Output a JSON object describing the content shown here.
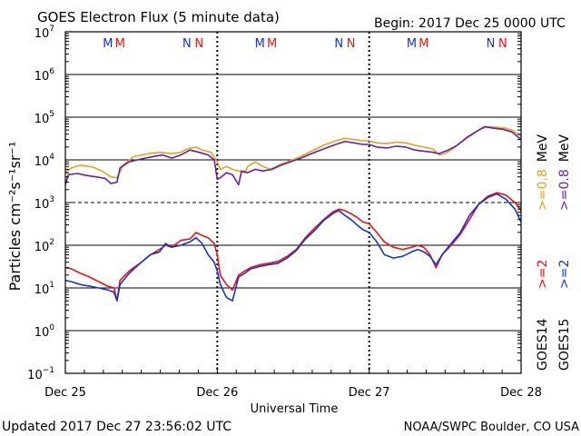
{
  "header": {
    "title": "GOES Electron Flux (5 minute data)",
    "begin": "Begin: 2017 Dec 25 0000 UTC"
  },
  "footer": {
    "updated": "Updated 2017 Dec 27 23:56:02 UTC",
    "credit": "NOAA/SWPC Boulder, CO USA"
  },
  "colors": {
    "goes14_e2": "#ee1111",
    "goes14_e08": "#e8a020",
    "goes15_e2": "#1133dd",
    "goes15_e08": "#6a1fa0",
    "marker_m": "#1133dd",
    "marker_n": "#ee1111"
  },
  "chart_data": {
    "type": "line",
    "title": "GOES Electron Flux (5 minute data)",
    "xlabel": "Universal Time",
    "ylabel": "Particles cm⁻²s⁻¹sr⁻¹",
    "x_ticks": [
      "Dec 25",
      "Dec 26",
      "Dec 27",
      "Dec 28"
    ],
    "xlim_days": [
      0,
      3
    ],
    "yscale": "log",
    "ylim": [
      0.1,
      10000000
    ],
    "y_tick_labels": [
      {
        "base": "10",
        "exp": "7"
      },
      {
        "base": "10",
        "exp": "6"
      },
      {
        "base": "10",
        "exp": "5"
      },
      {
        "base": "10",
        "exp": "4"
      },
      {
        "base": "10",
        "exp": "3"
      },
      {
        "base": "10",
        "exp": "2"
      },
      {
        "base": "10",
        "exp": "1"
      },
      {
        "base": "10",
        "exp": "0"
      },
      {
        "base": "10",
        "exp": "−1"
      }
    ],
    "alert_threshold": 1000,
    "grid": true,
    "legend": {
      "instruments": [
        "GOES14",
        "GOES15"
      ],
      "entries": [
        {
          "instrument": "GOES14",
          "label": ">=2",
          "unit": "",
          "color": "#ee1111"
        },
        {
          "instrument": "GOES14",
          "label": ">=0.8",
          "unit": "MeV",
          "color": "#e8a020"
        },
        {
          "instrument": "GOES15",
          "label": ">=2",
          "unit": "",
          "color": "#1133dd"
        },
        {
          "instrument": "GOES15",
          "label": ">=0.8",
          "unit": "MeV",
          "color": "#6a1fa0"
        }
      ]
    },
    "markers": [
      {
        "day": 0.28,
        "label": "M",
        "color": "#1133dd"
      },
      {
        "day": 0.36,
        "label": "M",
        "color": "#ee1111"
      },
      {
        "day": 0.8,
        "label": "N",
        "color": "#1133dd"
      },
      {
        "day": 0.88,
        "label": "N",
        "color": "#ee1111"
      },
      {
        "day": 1.28,
        "label": "M",
        "color": "#1133dd"
      },
      {
        "day": 1.36,
        "label": "M",
        "color": "#ee1111"
      },
      {
        "day": 1.8,
        "label": "N",
        "color": "#1133dd"
      },
      {
        "day": 1.88,
        "label": "N",
        "color": "#ee1111"
      },
      {
        "day": 2.28,
        "label": "M",
        "color": "#1133dd"
      },
      {
        "day": 2.36,
        "label": "M",
        "color": "#ee1111"
      },
      {
        "day": 2.8,
        "label": "N",
        "color": "#1133dd"
      },
      {
        "day": 2.88,
        "label": "N",
        "color": "#ee1111"
      }
    ],
    "day_boundaries": [
      1,
      2
    ],
    "series": [
      {
        "name": "GOES14 >=0.8 MeV",
        "color": "#e8a020",
        "points": [
          [
            0,
            5000
          ],
          [
            0.04,
            6500
          ],
          [
            0.1,
            7500
          ],
          [
            0.18,
            6800
          ],
          [
            0.24,
            5500
          ],
          [
            0.3,
            4000
          ],
          [
            0.34,
            3800
          ],
          [
            0.38,
            7500
          ],
          [
            0.45,
            12000
          ],
          [
            0.55,
            14000
          ],
          [
            0.62,
            15000
          ],
          [
            0.7,
            14000
          ],
          [
            0.76,
            15000
          ],
          [
            0.8,
            18000
          ],
          [
            0.86,
            20000
          ],
          [
            0.9,
            17000
          ],
          [
            0.96,
            15000
          ],
          [
            1.0,
            9000
          ],
          [
            1.02,
            6000
          ],
          [
            1.06,
            7000
          ],
          [
            1.1,
            6000
          ],
          [
            1.14,
            5500
          ],
          [
            1.18,
            5000
          ],
          [
            1.2,
            7000
          ],
          [
            1.25,
            9000
          ],
          [
            1.3,
            7000
          ],
          [
            1.35,
            6000
          ],
          [
            1.42,
            8000
          ],
          [
            1.48,
            9500
          ],
          [
            1.55,
            12000
          ],
          [
            1.62,
            16000
          ],
          [
            1.7,
            22000
          ],
          [
            1.78,
            28000
          ],
          [
            1.84,
            32000
          ],
          [
            1.9,
            30000
          ],
          [
            1.96,
            28000
          ],
          [
            2.0,
            28000
          ],
          [
            2.05,
            25000
          ],
          [
            2.12,
            24000
          ],
          [
            2.18,
            26000
          ],
          [
            2.24,
            25000
          ],
          [
            2.3,
            22000
          ],
          [
            2.36,
            20000
          ],
          [
            2.42,
            18000
          ],
          [
            2.46,
            13000
          ],
          [
            2.5,
            14000
          ],
          [
            2.55,
            18000
          ],
          [
            2.6,
            25000
          ],
          [
            2.66,
            35000
          ],
          [
            2.72,
            50000
          ],
          [
            2.78,
            60000
          ],
          [
            2.84,
            58000
          ],
          [
            2.9,
            55000
          ],
          [
            2.95,
            48000
          ],
          [
            3.0,
            35000
          ]
        ]
      },
      {
        "name": "GOES15 >=0.8 MeV",
        "color": "#6a1fa0",
        "points": [
          [
            0,
            2600
          ],
          [
            0.02,
            4500
          ],
          [
            0.08,
            4800
          ],
          [
            0.14,
            4300
          ],
          [
            0.2,
            4000
          ],
          [
            0.26,
            3700
          ],
          [
            0.3,
            2800
          ],
          [
            0.34,
            3000
          ],
          [
            0.36,
            6500
          ],
          [
            0.42,
            9000
          ],
          [
            0.5,
            10500
          ],
          [
            0.58,
            12000
          ],
          [
            0.64,
            13000
          ],
          [
            0.7,
            11000
          ],
          [
            0.76,
            13000
          ],
          [
            0.82,
            17000
          ],
          [
            0.88,
            15000
          ],
          [
            0.94,
            13000
          ],
          [
            0.98,
            10000
          ],
          [
            1.0,
            3500
          ],
          [
            1.02,
            3800
          ],
          [
            1.06,
            5000
          ],
          [
            1.1,
            4500
          ],
          [
            1.14,
            2600
          ],
          [
            1.16,
            5500
          ],
          [
            1.2,
            5000
          ],
          [
            1.25,
            6000
          ],
          [
            1.3,
            5500
          ],
          [
            1.36,
            6000
          ],
          [
            1.42,
            7500
          ],
          [
            1.48,
            9000
          ],
          [
            1.55,
            11000
          ],
          [
            1.62,
            14000
          ],
          [
            1.7,
            18000
          ],
          [
            1.78,
            23000
          ],
          [
            1.84,
            27000
          ],
          [
            1.9,
            25000
          ],
          [
            1.96,
            23000
          ],
          [
            2.0,
            23000
          ],
          [
            2.05,
            20000
          ],
          [
            2.12,
            19000
          ],
          [
            2.18,
            21000
          ],
          [
            2.24,
            20000
          ],
          [
            2.3,
            17000
          ],
          [
            2.36,
            16000
          ],
          [
            2.42,
            15000
          ],
          [
            2.46,
            14000
          ],
          [
            2.52,
            17000
          ],
          [
            2.58,
            22000
          ],
          [
            2.64,
            33000
          ],
          [
            2.7,
            45000
          ],
          [
            2.76,
            60000
          ],
          [
            2.82,
            55000
          ],
          [
            2.88,
            52000
          ],
          [
            2.94,
            45000
          ],
          [
            3.0,
            30000
          ]
        ]
      },
      {
        "name": "GOES14 >=2 MeV",
        "color": "#ee1111",
        "points": [
          [
            0,
            30
          ],
          [
            0.04,
            28
          ],
          [
            0.1,
            22
          ],
          [
            0.16,
            18
          ],
          [
            0.22,
            14
          ],
          [
            0.28,
            11
          ],
          [
            0.32,
            10
          ],
          [
            0.34,
            5
          ],
          [
            0.36,
            15
          ],
          [
            0.42,
            25
          ],
          [
            0.5,
            40
          ],
          [
            0.56,
            60
          ],
          [
            0.62,
            80
          ],
          [
            0.66,
            100
          ],
          [
            0.7,
            90
          ],
          [
            0.76,
            130
          ],
          [
            0.82,
            140
          ],
          [
            0.86,
            200
          ],
          [
            0.9,
            170
          ],
          [
            0.94,
            150
          ],
          [
            0.98,
            110
          ],
          [
            1.0,
            60
          ],
          [
            1.02,
            20
          ],
          [
            1.06,
            12
          ],
          [
            1.1,
            9
          ],
          [
            1.14,
            20
          ],
          [
            1.18,
            25
          ],
          [
            1.22,
            30
          ],
          [
            1.28,
            35
          ],
          [
            1.34,
            38
          ],
          [
            1.4,
            42
          ],
          [
            1.46,
            55
          ],
          [
            1.52,
            80
          ],
          [
            1.58,
            150
          ],
          [
            1.64,
            250
          ],
          [
            1.7,
            400
          ],
          [
            1.76,
            600
          ],
          [
            1.8,
            700
          ],
          [
            1.84,
            650
          ],
          [
            1.88,
            550
          ],
          [
            1.92,
            450
          ],
          [
            1.96,
            350
          ],
          [
            2.0,
            320
          ],
          [
            2.05,
            200
          ],
          [
            2.1,
            120
          ],
          [
            2.16,
            90
          ],
          [
            2.22,
            80
          ],
          [
            2.28,
            90
          ],
          [
            2.32,
            100
          ],
          [
            2.36,
            90
          ],
          [
            2.4,
            60
          ],
          [
            2.44,
            30
          ],
          [
            2.48,
            60
          ],
          [
            2.54,
            100
          ],
          [
            2.6,
            180
          ],
          [
            2.66,
            400
          ],
          [
            2.72,
            900
          ],
          [
            2.78,
            1400
          ],
          [
            2.84,
            1700
          ],
          [
            2.9,
            1500
          ],
          [
            2.96,
            1000
          ],
          [
            3.0,
            650
          ]
        ]
      },
      {
        "name": "GOES15 >=2 MeV",
        "color": "#1133dd",
        "points": [
          [
            0,
            15
          ],
          [
            0.04,
            14
          ],
          [
            0.1,
            12
          ],
          [
            0.16,
            11
          ],
          [
            0.22,
            10
          ],
          [
            0.28,
            9
          ],
          [
            0.32,
            8
          ],
          [
            0.34,
            5
          ],
          [
            0.36,
            12
          ],
          [
            0.42,
            22
          ],
          [
            0.5,
            40
          ],
          [
            0.56,
            60
          ],
          [
            0.62,
            70
          ],
          [
            0.66,
            110
          ],
          [
            0.7,
            90
          ],
          [
            0.76,
            100
          ],
          [
            0.82,
            120
          ],
          [
            0.86,
            150
          ],
          [
            0.9,
            110
          ],
          [
            0.94,
            60
          ],
          [
            0.98,
            40
          ],
          [
            1.0,
            25
          ],
          [
            1.02,
            12
          ],
          [
            1.06,
            6
          ],
          [
            1.1,
            5
          ],
          [
            1.14,
            18
          ],
          [
            1.18,
            22
          ],
          [
            1.22,
            28
          ],
          [
            1.28,
            32
          ],
          [
            1.34,
            35
          ],
          [
            1.4,
            38
          ],
          [
            1.46,
            50
          ],
          [
            1.52,
            75
          ],
          [
            1.58,
            140
          ],
          [
            1.64,
            220
          ],
          [
            1.7,
            380
          ],
          [
            1.76,
            550
          ],
          [
            1.8,
            650
          ],
          [
            1.84,
            500
          ],
          [
            1.88,
            400
          ],
          [
            1.92,
            300
          ],
          [
            1.96,
            230
          ],
          [
            2.0,
            200
          ],
          [
            2.05,
            120
          ],
          [
            2.1,
            60
          ],
          [
            2.16,
            50
          ],
          [
            2.22,
            55
          ],
          [
            2.28,
            70
          ],
          [
            2.32,
            80
          ],
          [
            2.36,
            70
          ],
          [
            2.4,
            55
          ],
          [
            2.44,
            35
          ],
          [
            2.48,
            60
          ],
          [
            2.54,
            110
          ],
          [
            2.6,
            200
          ],
          [
            2.66,
            500
          ],
          [
            2.72,
            900
          ],
          [
            2.78,
            1300
          ],
          [
            2.84,
            1600
          ],
          [
            2.9,
            1200
          ],
          [
            2.96,
            700
          ],
          [
            3.0,
            350
          ]
        ]
      }
    ]
  }
}
